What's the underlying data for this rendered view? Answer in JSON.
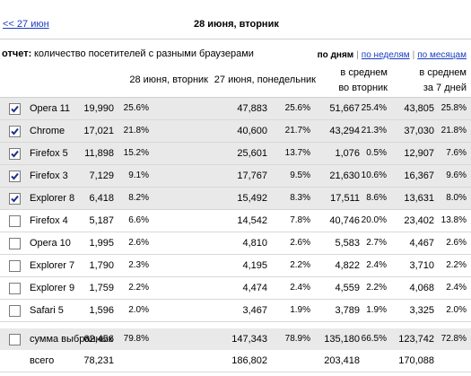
{
  "nav": {
    "prev": "<< 27 июн",
    "title": "28 июня, вторник"
  },
  "report": {
    "label": "отчет:",
    "text": "количество посетителей с разными браузерами"
  },
  "periods": [
    {
      "label": "по дням",
      "active": true
    },
    {
      "label": "по неделям",
      "active": false
    },
    {
      "label": "по месяцам",
      "active": false
    }
  ],
  "table": {
    "columns": [
      [
        "28 июня, вторник"
      ],
      [
        "27 июня, понедельник"
      ],
      [
        "в среднем",
        "во вторник"
      ],
      [
        "в среднем",
        "за 7 дней"
      ]
    ],
    "rows": [
      {
        "name": "Opera 11",
        "checked": true,
        "cells": [
          "19,990",
          "25.6%",
          "47,883",
          "25.6%",
          "51,667",
          "25.4%",
          "43,805",
          "25.8%"
        ]
      },
      {
        "name": "Chrome",
        "checked": true,
        "cells": [
          "17,021",
          "21.8%",
          "40,600",
          "21.7%",
          "43,294",
          "21.3%",
          "37,030",
          "21.8%"
        ]
      },
      {
        "name": "Firefox 5",
        "checked": true,
        "cells": [
          "11,898",
          "15.2%",
          "25,601",
          "13.7%",
          "1,076",
          "0.5%",
          "12,907",
          "7.6%"
        ]
      },
      {
        "name": "Firefox 3",
        "checked": true,
        "cells": [
          "7,129",
          "9.1%",
          "17,767",
          "9.5%",
          "21,630",
          "10.6%",
          "16,367",
          "9.6%"
        ]
      },
      {
        "name": "Explorer 8",
        "checked": true,
        "cells": [
          "6,418",
          "8.2%",
          "15,492",
          "8.3%",
          "17,511",
          "8.6%",
          "13,631",
          "8.0%"
        ]
      },
      {
        "name": "Firefox 4",
        "checked": false,
        "cells": [
          "5,187",
          "6.6%",
          "14,542",
          "7.8%",
          "40,746",
          "20.0%",
          "23,402",
          "13.8%"
        ]
      },
      {
        "name": "Opera 10",
        "checked": false,
        "cells": [
          "1,995",
          "2.6%",
          "4,810",
          "2.6%",
          "5,583",
          "2.7%",
          "4,467",
          "2.6%"
        ]
      },
      {
        "name": "Explorer 7",
        "checked": false,
        "cells": [
          "1,790",
          "2.3%",
          "4,195",
          "2.2%",
          "4,822",
          "2.4%",
          "3,710",
          "2.2%"
        ]
      },
      {
        "name": "Explorer 9",
        "checked": false,
        "cells": [
          "1,759",
          "2.2%",
          "4,474",
          "2.4%",
          "4,559",
          "2.2%",
          "4,068",
          "2.4%"
        ]
      },
      {
        "name": "Safari 5",
        "checked": false,
        "cells": [
          "1,596",
          "2.0%",
          "3,467",
          "1.9%",
          "3,789",
          "1.9%",
          "3,325",
          "2.0%"
        ]
      }
    ],
    "summary": {
      "name": "сумма выбранных",
      "checked": false,
      "cells": [
        "62,456",
        "79.8%",
        "147,343",
        "78.9%",
        "135,180",
        "66.5%",
        "123,742",
        "72.8%"
      ]
    },
    "total": {
      "name": "всего",
      "cells": [
        "78,231",
        "186,802",
        "203,418",
        "170,088"
      ]
    }
  }
}
